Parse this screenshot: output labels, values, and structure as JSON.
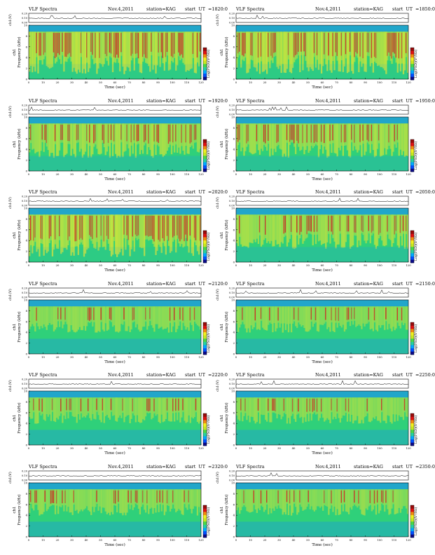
{
  "chart_data": [
    {
      "type": "heatmap",
      "title": "VLF Spectra",
      "date": "Nov.4,2011",
      "station": "station=KAG",
      "start": "start  UT  =1820:0",
      "amp_label": "ch1(V)",
      "amp_ticks": [
        "0.00",
        "0.10",
        "0.20"
      ],
      "ylabel_channel": "ch1",
      "ylabel": "Frequency  (kHz)",
      "xlabel": "Time  (sec)",
      "xlim": [
        0,
        120
      ],
      "ylim": [
        0,
        10
      ],
      "x_ticks": [
        "0",
        "10",
        "20",
        "30",
        "40",
        "50",
        "60",
        "70",
        "80",
        "90",
        "100",
        "110",
        "120"
      ],
      "y_ticks": [
        "0",
        "2",
        "4",
        "6",
        "8",
        "10"
      ],
      "colorbar_label": "Log(PSD)(V²/Hz)",
      "colorbar_ticks": [
        "-",
        "-"
      ],
      "activity": "high"
    },
    {
      "type": "heatmap",
      "title": "VLF Spectra",
      "date": "Nov.4,2011",
      "station": "station=KAG",
      "start": "start  UT  =1850:0",
      "amp_label": "ch1(V)",
      "amp_ticks": [
        "0.00",
        "0.10",
        "0.20"
      ],
      "ylabel_channel": "ch1",
      "ylabel": "Frequency  (kHz)",
      "xlabel": "Time  (sec)",
      "xlim": [
        0,
        120
      ],
      "ylim": [
        0,
        10
      ],
      "x_ticks": [
        "0",
        "10",
        "20",
        "30",
        "40",
        "50",
        "60",
        "70",
        "80",
        "90",
        "100",
        "110",
        "120"
      ],
      "y_ticks": [
        "0",
        "2",
        "4",
        "6",
        "8",
        "10"
      ],
      "colorbar_label": "Log(PSD)(V²/Hz)",
      "colorbar_ticks": [
        "-",
        "-"
      ],
      "activity": "high"
    },
    {
      "type": "heatmap",
      "title": "VLF Spectra",
      "date": "Nov.4,2011",
      "station": "station=KAG",
      "start": "start  UT  =1920:0",
      "amp_label": "ch1(V)",
      "amp_ticks": [
        "0.00",
        "0.10",
        "0.20"
      ],
      "ylabel_channel": "ch1",
      "ylabel": "Frequency  (kHz)",
      "xlabel": "Time  (sec)",
      "xlim": [
        0,
        120
      ],
      "ylim": [
        0,
        10
      ],
      "x_ticks": [
        "0",
        "10",
        "20",
        "30",
        "40",
        "50",
        "60",
        "70",
        "80",
        "90",
        "100",
        "110",
        "120"
      ],
      "y_ticks": [
        "0",
        "2",
        "4",
        "6",
        "8",
        "10"
      ],
      "colorbar_label": "Log(PSD)(V²/Hz)",
      "colorbar_ticks": [
        "-",
        "-"
      ],
      "activity": "medium"
    },
    {
      "type": "heatmap",
      "title": "VLF Spectra",
      "date": "Nov.4,2011",
      "station": "station=KAG",
      "start": "start  UT  =1950:0",
      "amp_label": "ch1(V)",
      "amp_ticks": [
        "0.00",
        "0.10",
        "0.20"
      ],
      "ylabel_channel": "ch1",
      "ylabel": "Frequency  (kHz)",
      "xlabel": "Time  (sec)",
      "xlim": [
        0,
        120
      ],
      "ylim": [
        0,
        10
      ],
      "x_ticks": [
        "0",
        "10",
        "20",
        "30",
        "40",
        "50",
        "60",
        "70",
        "80",
        "90",
        "100",
        "110",
        "120"
      ],
      "y_ticks": [
        "0",
        "2",
        "4",
        "6",
        "8",
        "10"
      ],
      "colorbar_label": "Log(PSD)(V²/Hz)",
      "colorbar_ticks": [
        "-",
        "-"
      ],
      "activity": "medium"
    },
    {
      "type": "heatmap",
      "title": "VLF Spectra",
      "date": "Nov.4,2011",
      "station": "station=KAG",
      "start": "start  UT  =2020:0",
      "amp_label": "ch1(V)",
      "amp_ticks": [
        "0.00",
        "0.10",
        "0.20"
      ],
      "ylabel_channel": "ch1",
      "ylabel": "Frequency  (kHz)",
      "xlabel": "Time  (sec)",
      "xlim": [
        0,
        120
      ],
      "ylim": [
        0,
        10
      ],
      "x_ticks": [
        "0",
        "10",
        "20",
        "30",
        "40",
        "50",
        "60",
        "70",
        "80",
        "90",
        "100",
        "110",
        "120"
      ],
      "y_ticks": [
        "0",
        "2",
        "4",
        "6",
        "8",
        "10"
      ],
      "colorbar_label": "Log(PSD)(V²/Hz)",
      "colorbar_ticks": [
        "-",
        "-"
      ],
      "activity": "high"
    },
    {
      "type": "heatmap",
      "title": "VLF Spectra",
      "date": "Nov.4,2011",
      "station": "station=KAG",
      "start": "start  UT  =2050:0",
      "amp_label": "ch1(V)",
      "amp_ticks": [
        "0.00",
        "0.10",
        "0.20"
      ],
      "ylabel_channel": "ch1",
      "ylabel": "Frequency  (kHz)",
      "xlabel": "Time  (sec)",
      "xlim": [
        0,
        120
      ],
      "ylim": [
        0,
        10
      ],
      "x_ticks": [
        "0",
        "10",
        "20",
        "30",
        "40",
        "50",
        "60",
        "70",
        "80",
        "90",
        "100",
        "110",
        "120"
      ],
      "y_ticks": [
        "0",
        "2",
        "4",
        "6",
        "8",
        "10"
      ],
      "colorbar_label": "Log(PSD)(V²/Hz)",
      "colorbar_ticks": [
        "-",
        "-"
      ],
      "activity": "medium"
    },
    {
      "type": "heatmap",
      "title": "VLF Spectra",
      "date": "Nov.4,2011",
      "station": "station=KAG",
      "start": "start  UT  =2120:0",
      "amp_label": "ch1(V)",
      "amp_ticks": [
        "0.00",
        "0.10",
        "0.20"
      ],
      "ylabel_channel": "ch1",
      "ylabel": "Frequency  (kHz)",
      "xlabel": "Time  (sec)",
      "xlim": [
        0,
        120
      ],
      "ylim": [
        0,
        10
      ],
      "x_ticks": [
        "0",
        "10",
        "20",
        "30",
        "40",
        "50",
        "60",
        "70",
        "80",
        "90",
        "100",
        "110",
        "120"
      ],
      "y_ticks": [
        "0",
        "2",
        "4",
        "6",
        "8",
        "10"
      ],
      "colorbar_label": "Log(PSD)(V²/Hz)",
      "colorbar_ticks": [
        "-",
        "-"
      ],
      "activity": "low"
    },
    {
      "type": "heatmap",
      "title": "VLF Spectra",
      "date": "Nov.4,2011",
      "station": "station=KAG",
      "start": "start  UT  =2150:0",
      "amp_label": "ch1(V)",
      "amp_ticks": [
        "0.00",
        "0.10",
        "0.20"
      ],
      "ylabel_channel": "ch1",
      "ylabel": "Frequency  (kHz)",
      "xlabel": "Time  (sec)",
      "xlim": [
        0,
        120
      ],
      "ylim": [
        0,
        10
      ],
      "x_ticks": [
        "0",
        "10",
        "20",
        "30",
        "40",
        "50",
        "60",
        "70",
        "80",
        "90",
        "100",
        "110",
        "120"
      ],
      "y_ticks": [
        "0",
        "2",
        "4",
        "6",
        "8",
        "10"
      ],
      "colorbar_label": "Log(PSD)(V²/Hz)",
      "colorbar_ticks": [
        "-",
        "-"
      ],
      "activity": "low"
    },
    {
      "type": "heatmap",
      "title": "VLF Spectra",
      "date": "Nov.4,2011",
      "station": "station=KAG",
      "start": "start  UT  =2220:0",
      "amp_label": "ch1(V)",
      "amp_ticks": [
        "0.00",
        "0.10",
        "0.20"
      ],
      "ylabel_channel": "ch1",
      "ylabel": "Frequency  (kHz)",
      "xlabel": "Time  (sec)",
      "xlim": [
        0,
        120
      ],
      "ylim": [
        0,
        10
      ],
      "x_ticks": [
        "0",
        "10",
        "20",
        "30",
        "40",
        "50",
        "60",
        "70",
        "80",
        "90",
        "100",
        "110",
        "120"
      ],
      "y_ticks": [
        "0",
        "2",
        "4",
        "6",
        "8",
        "10"
      ],
      "colorbar_label": "Log(PSD)(V²/Hz)",
      "colorbar_ticks": [
        "-",
        "-"
      ],
      "activity": "low"
    },
    {
      "type": "heatmap",
      "title": "VLF Spectra",
      "date": "Nov.4,2011",
      "station": "station=KAG",
      "start": "start  UT  =2250:0",
      "amp_label": "ch1(V)",
      "amp_ticks": [
        "0.00",
        "0.10",
        "0.20"
      ],
      "ylabel_channel": "ch1",
      "ylabel": "Frequency  (kHz)",
      "xlabel": "Time  (sec)",
      "xlim": [
        0,
        120
      ],
      "ylim": [
        0,
        10
      ],
      "x_ticks": [
        "0",
        "10",
        "20",
        "30",
        "40",
        "50",
        "60",
        "70",
        "80",
        "90",
        "100",
        "110",
        "120"
      ],
      "y_ticks": [
        "0",
        "2",
        "4",
        "6",
        "8",
        "10"
      ],
      "colorbar_label": "Log(PSD)(V²/Hz)",
      "colorbar_ticks": [
        "-",
        "-"
      ],
      "activity": "low"
    },
    {
      "type": "heatmap",
      "title": "VLF Spectra",
      "date": "Nov.4,2011",
      "station": "station=KAG",
      "start": "start  UT  =2320:0",
      "amp_label": "ch1(V)",
      "amp_ticks": [
        "0.00",
        "0.10",
        "0.20"
      ],
      "ylabel_channel": "ch1",
      "ylabel": "Frequency  (kHz)",
      "xlabel": "Time  (sec)",
      "xlim": [
        0,
        120
      ],
      "ylim": [
        0,
        10
      ],
      "x_ticks": [
        "0",
        "10",
        "20",
        "30",
        "40",
        "50",
        "60",
        "70",
        "80",
        "90",
        "100",
        "110",
        "120"
      ],
      "y_ticks": [
        "0",
        "2",
        "4",
        "6",
        "8",
        "10"
      ],
      "colorbar_label": "Log(PSD)(V²/Hz)",
      "colorbar_ticks": [
        "-",
        "-"
      ],
      "activity": "low"
    },
    {
      "type": "heatmap",
      "title": "VLF Spectra",
      "date": "Nov.4,2011",
      "station": "station=KAG",
      "start": "start  UT  =2350:0",
      "amp_label": "ch1(V)",
      "amp_ticks": [
        "0.00",
        "0.10",
        "0.20"
      ],
      "ylabel_channel": "ch1",
      "ylabel": "Frequency  (kHz)",
      "xlabel": "Time  (sec)",
      "xlim": [
        0,
        120
      ],
      "ylim": [
        0,
        10
      ],
      "x_ticks": [
        "0",
        "10",
        "20",
        "30",
        "40",
        "50",
        "60",
        "70",
        "80",
        "90",
        "100",
        "110",
        "120"
      ],
      "y_ticks": [
        "0",
        "2",
        "4",
        "6",
        "8",
        "10"
      ],
      "colorbar_label": "Log(PSD)(V²/Hz)",
      "colorbar_ticks": [
        "-",
        "-"
      ],
      "activity": "low"
    }
  ],
  "colors": {
    "background": "#ffffff",
    "spectrogram_low": "#1f9fd8",
    "spectrogram_mid": "#2fd07a",
    "spectrogram_high": "#e8e830",
    "spectrogram_peak": "#d81e1e",
    "axis": "#000000"
  }
}
